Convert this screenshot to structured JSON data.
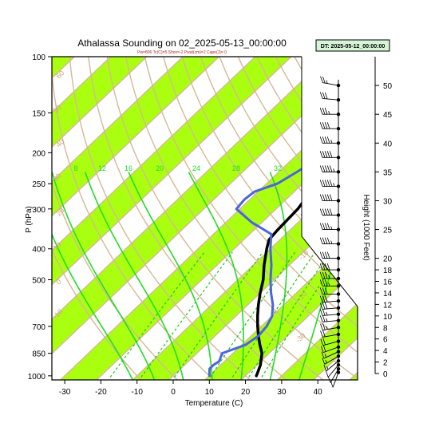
{
  "chart_data": {
    "type": "line",
    "title": "Athalassa Sounding on 02_2025-05-13_00:00:00",
    "subtitle": "Pw=806 Tc(C)=5 Shox=-2 Pwat(cm)=2 Cape(J)= 0",
    "date_box": "DT: 2025-05-12_00:00:00",
    "xlabel": "Temperature (C)",
    "ylabel": "P (hPa)",
    "y2label": "Height (1000 Feet)",
    "xlim": [
      -33,
      40
    ],
    "ylim": [
      1030,
      100
    ],
    "y_scale": "log",
    "x_ticks": [
      -30,
      -20,
      -10,
      0,
      10,
      20,
      30,
      40
    ],
    "y_ticks": [
      100,
      150,
      200,
      250,
      300,
      400,
      500,
      700,
      850,
      1000
    ],
    "height_ticks": [
      0,
      2,
      4,
      6,
      8,
      10,
      12,
      14,
      16,
      18,
      20,
      25,
      30,
      35,
      40,
      45,
      50
    ],
    "mixing_ratio_labels": [
      8,
      12,
      16,
      20,
      24,
      28,
      32
    ],
    "dry_adiabat_labels": [
      -10,
      0,
      10,
      20,
      30,
      40,
      50,
      60,
      70,
      80,
      90,
      100,
      110,
      120,
      130,
      140,
      150,
      160
    ],
    "series": [
      {
        "name": "Temperature",
        "color": "#000000",
        "points": [
          [
            1000,
            23
          ],
          [
            980,
            22.5
          ],
          [
            925,
            21
          ],
          [
            850,
            18
          ],
          [
            800,
            15
          ],
          [
            750,
            12
          ],
          [
            700,
            9
          ],
          [
            650,
            6
          ],
          [
            600,
            3
          ],
          [
            550,
            0
          ],
          [
            500,
            -3
          ],
          [
            450,
            -7
          ],
          [
            400,
            -11
          ],
          [
            375,
            -13
          ],
          [
            350,
            -13.5
          ],
          [
            300,
            -14
          ],
          [
            275,
            -15
          ],
          [
            250,
            -16
          ],
          [
            225,
            -17
          ],
          [
            200,
            -16.5
          ],
          [
            185,
            -15
          ],
          [
            170,
            -13
          ],
          [
            150,
            -11
          ],
          [
            130,
            -9
          ],
          [
            115,
            -8
          ],
          [
            100,
            -7.5
          ]
        ]
      },
      {
        "name": "Dew Point",
        "color": "#4a66d8",
        "points": [
          [
            1000,
            10
          ],
          [
            975,
            9
          ],
          [
            950,
            8
          ],
          [
            925,
            8
          ],
          [
            900,
            8.5
          ],
          [
            850,
            7
          ],
          [
            800,
            11
          ],
          [
            750,
            12
          ],
          [
            700,
            11.5
          ],
          [
            650,
            10
          ],
          [
            600,
            7
          ],
          [
            550,
            3
          ],
          [
            500,
            -1
          ],
          [
            450,
            -5
          ],
          [
            400,
            -10
          ],
          [
            360,
            -14
          ],
          [
            330,
            -23
          ],
          [
            300,
            -31
          ],
          [
            280,
            -31.5
          ],
          [
            265,
            -31
          ],
          [
            250,
            -27
          ],
          [
            230,
            -25
          ],
          [
            210,
            -23
          ],
          [
            200,
            -23.5
          ],
          [
            185,
            -24
          ],
          [
            170,
            -25
          ],
          [
            150,
            -26
          ],
          [
            125,
            -24
          ],
          [
            100,
            -18
          ]
        ]
      }
    ],
    "wind_barbs": [
      {
        "height": 0.2,
        "speed": 10,
        "dir": 200
      },
      {
        "height": 0.8,
        "speed": 10,
        "dir": 210
      },
      {
        "height": 1.5,
        "speed": 10,
        "dir": 220
      },
      {
        "height": 2.2,
        "speed": 15,
        "dir": 230
      },
      {
        "height": 3.0,
        "speed": 15,
        "dir": 240
      },
      {
        "height": 3.8,
        "speed": 15,
        "dir": 245
      },
      {
        "height": 4.6,
        "speed": 20,
        "dir": 250
      },
      {
        "height": 5.6,
        "speed": 20,
        "dir": 255
      },
      {
        "height": 6.8,
        "speed": 20,
        "dir": 260
      },
      {
        "height": 8.0,
        "speed": 25,
        "dir": 260
      },
      {
        "height": 9.2,
        "speed": 25,
        "dir": 265
      },
      {
        "height": 10.3,
        "speed": 25,
        "dir": 265
      },
      {
        "height": 11.4,
        "speed": 30,
        "dir": 265
      },
      {
        "height": 12.6,
        "speed": 30,
        "dir": 265
      },
      {
        "height": 13.8,
        "speed": 30,
        "dir": 270
      },
      {
        "height": 15.2,
        "speed": 35,
        "dir": 270
      },
      {
        "height": 16.5,
        "speed": 35,
        "dir": 270
      },
      {
        "height": 18.0,
        "speed": 40,
        "dir": 270
      },
      {
        "height": 20.0,
        "speed": 40,
        "dir": 270
      },
      {
        "height": 22.5,
        "speed": 45,
        "dir": 270
      },
      {
        "height": 25.0,
        "speed": 45,
        "dir": 270
      },
      {
        "height": 27.5,
        "speed": 50,
        "dir": 270
      },
      {
        "height": 30.0,
        "speed": 50,
        "dir": 270
      },
      {
        "height": 32.5,
        "speed": 55,
        "dir": 270
      },
      {
        "height": 35.0,
        "speed": 55,
        "dir": 270
      },
      {
        "height": 37.5,
        "speed": 50,
        "dir": 270
      },
      {
        "height": 40.0,
        "speed": 45,
        "dir": 270
      },
      {
        "height": 42.5,
        "speed": 40,
        "dir": 270
      },
      {
        "height": 45.0,
        "speed": 35,
        "dir": 270
      },
      {
        "height": 47.5,
        "speed": 30,
        "dir": 275
      },
      {
        "height": 50.0,
        "speed": 25,
        "dir": 280
      }
    ],
    "colors": {
      "band": "#aaff11",
      "isotherm": "#d6b894",
      "isotherm_label": "#c9a57a",
      "moist": "#22dd22",
      "mixing": "#11cc11"
    }
  }
}
